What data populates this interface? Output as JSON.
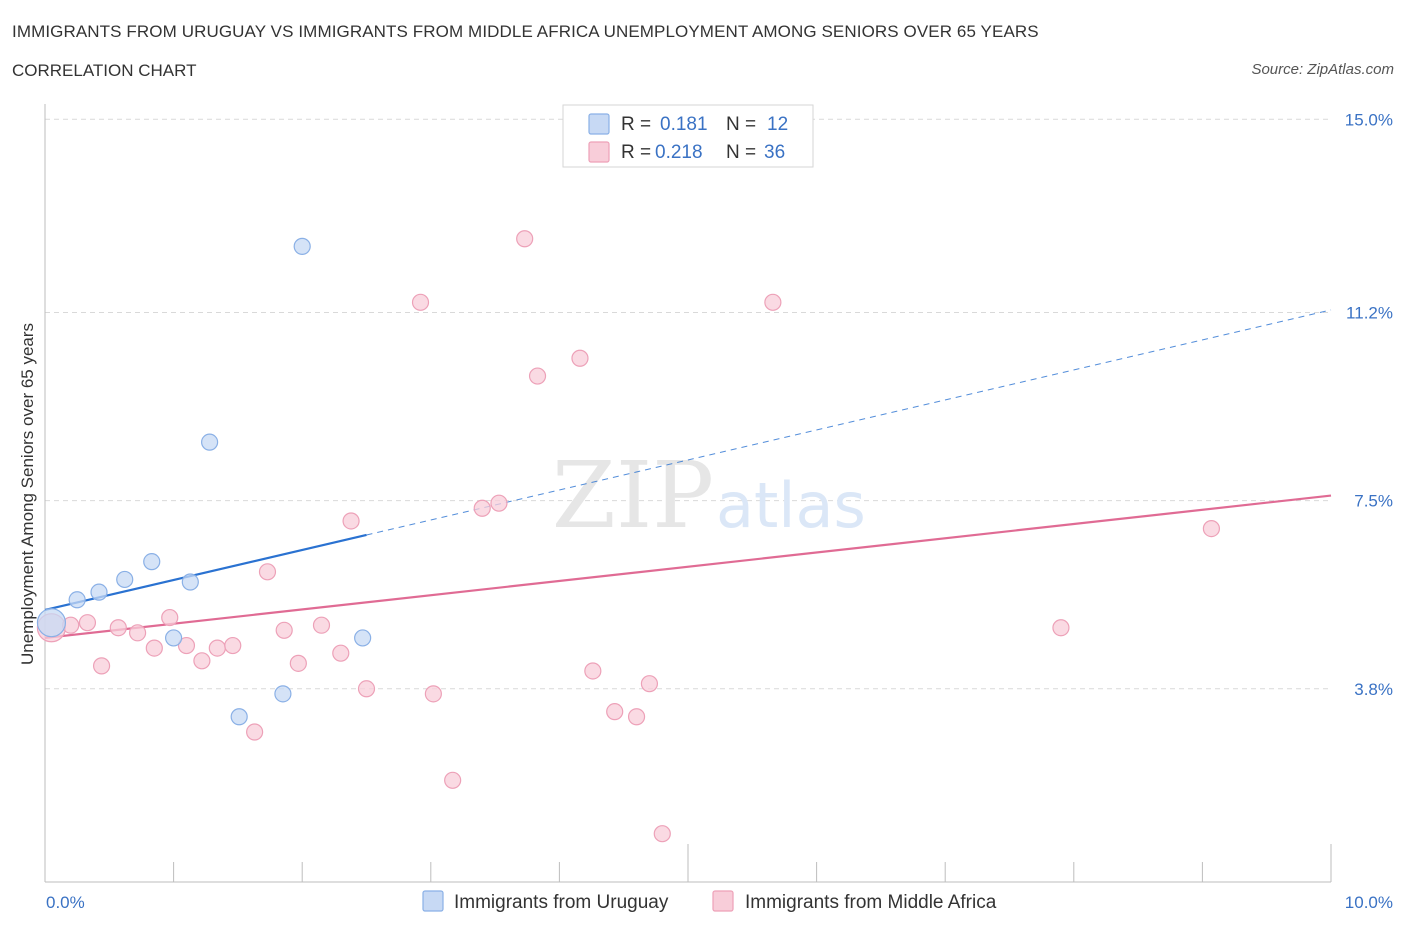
{
  "title": "IMMIGRANTS FROM URUGUAY VS IMMIGRANTS FROM MIDDLE AFRICA UNEMPLOYMENT AMONG SENIORS OVER 65 YEARS",
  "subtitle": "CORRELATION CHART",
  "source": "Source: ZipAtlas.com",
  "watermark": {
    "zip": "ZIP",
    "atlas": "atlas"
  },
  "legend_box": {
    "rows": [
      {
        "r_label": "R = ",
        "r_value": "0.181",
        "n_label": "N = ",
        "n_value": "12"
      },
      {
        "r_label": "R = ",
        "r_value": "0.218",
        "n_label": "N = ",
        "n_value": "36"
      }
    ]
  },
  "colors": {
    "uruguay_fill": "#c7d9f4",
    "uruguay_stroke": "#8ab0e6",
    "uruguay_line": "#2a72d1",
    "africa_fill": "#f8cdd9",
    "africa_stroke": "#eda1b8",
    "africa_line": "#e06b94",
    "value_text": "#3a72c4",
    "grid": "#d9d9d9"
  },
  "chart_data": {
    "type": "scatter",
    "title": "IMMIGRANTS FROM URUGUAY VS IMMIGRANTS FROM MIDDLE AFRICA UNEMPLOYMENT AMONG SENIORS OVER 65 YEARS",
    "xlabel": "",
    "ylabel": "Unemployment Among Seniors over 65 years",
    "xlim": [
      0,
      10
    ],
    "ylim": [
      0.0,
      15.3
    ],
    "x_tick_labels": [
      "0.0%",
      "10.0%"
    ],
    "y_ticks": [
      {
        "value": 15.0,
        "label": "15.0%"
      },
      {
        "value": 11.2,
        "label": "11.2%"
      },
      {
        "value": 7.5,
        "label": "7.5%"
      },
      {
        "value": 3.8,
        "label": "3.8%"
      }
    ],
    "legend": [
      "Immigrants from Uruguay",
      "Immigrants from Middle Africa"
    ],
    "series": [
      {
        "name": "Immigrants from Uruguay",
        "r": 0.181,
        "n": 12,
        "points": [
          {
            "x": 0.05,
            "y": 5.1,
            "big": true
          },
          {
            "x": 0.25,
            "y": 5.55
          },
          {
            "x": 0.42,
            "y": 5.7
          },
          {
            "x": 0.62,
            "y": 5.95
          },
          {
            "x": 0.83,
            "y": 6.3
          },
          {
            "x": 1.0,
            "y": 4.8
          },
          {
            "x": 1.13,
            "y": 5.9
          },
          {
            "x": 1.28,
            "y": 8.65
          },
          {
            "x": 1.51,
            "y": 3.25
          },
          {
            "x": 1.85,
            "y": 3.7
          },
          {
            "x": 2.0,
            "y": 12.5
          },
          {
            "x": 2.47,
            "y": 4.8
          }
        ],
        "trend": {
          "x0": 0.0,
          "y0": 5.35,
          "x1": 10.0,
          "y1": 11.25,
          "solid_until": 2.5
        }
      },
      {
        "name": "Immigrants from Middle Africa",
        "r": 0.218,
        "n": 36,
        "points": [
          {
            "x": 0.05,
            "y": 5.0,
            "big": true
          },
          {
            "x": 0.2,
            "y": 5.05
          },
          {
            "x": 0.33,
            "y": 5.1
          },
          {
            "x": 0.44,
            "y": 4.25
          },
          {
            "x": 0.57,
            "y": 5.0
          },
          {
            "x": 0.72,
            "y": 4.9
          },
          {
            "x": 0.85,
            "y": 4.6
          },
          {
            "x": 0.97,
            "y": 5.2
          },
          {
            "x": 1.1,
            "y": 4.65
          },
          {
            "x": 1.22,
            "y": 4.35
          },
          {
            "x": 1.34,
            "y": 4.6
          },
          {
            "x": 1.46,
            "y": 4.65
          },
          {
            "x": 1.63,
            "y": 2.95
          },
          {
            "x": 1.73,
            "y": 6.1
          },
          {
            "x": 1.86,
            "y": 4.95
          },
          {
            "x": 1.97,
            "y": 4.3
          },
          {
            "x": 2.15,
            "y": 5.05
          },
          {
            "x": 2.3,
            "y": 4.5
          },
          {
            "x": 2.38,
            "y": 7.1
          },
          {
            "x": 2.5,
            "y": 3.8
          },
          {
            "x": 2.92,
            "y": 11.4
          },
          {
            "x": 3.02,
            "y": 3.7
          },
          {
            "x": 3.17,
            "y": 2.0
          },
          {
            "x": 3.4,
            "y": 7.35
          },
          {
            "x": 3.53,
            "y": 7.45
          },
          {
            "x": 3.73,
            "y": 12.65
          },
          {
            "x": 3.83,
            "y": 9.95
          },
          {
            "x": 4.16,
            "y": 10.3
          },
          {
            "x": 4.26,
            "y": 4.15
          },
          {
            "x": 4.43,
            "y": 3.35
          },
          {
            "x": 4.6,
            "y": 3.25
          },
          {
            "x": 4.7,
            "y": 3.9
          },
          {
            "x": 4.8,
            "y": 0.95
          },
          {
            "x": 5.66,
            "y": 11.4
          },
          {
            "x": 7.9,
            "y": 5.0
          },
          {
            "x": 9.07,
            "y": 6.95
          }
        ],
        "trend": {
          "x0": 0.0,
          "y0": 4.8,
          "x1": 10.0,
          "y1": 7.6
        }
      }
    ]
  }
}
